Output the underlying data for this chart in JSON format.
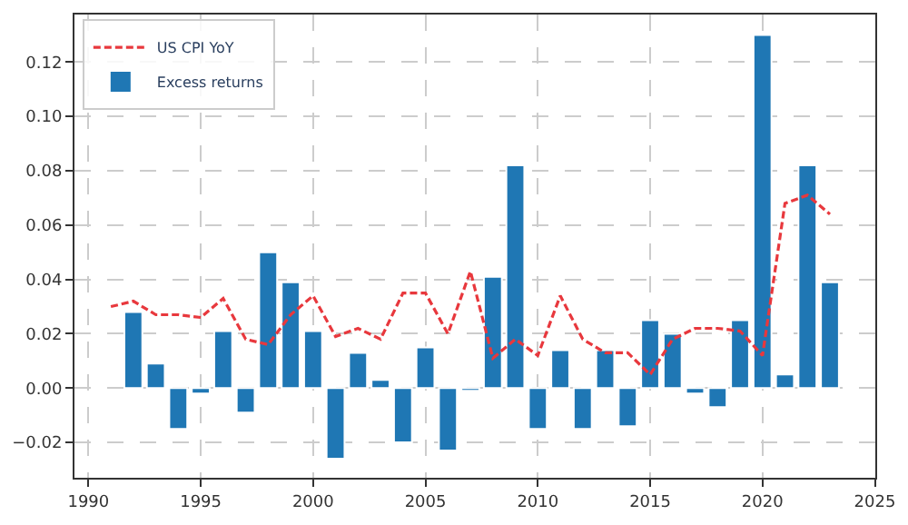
{
  "chart_data": {
    "type": "bar",
    "xlim": [
      1989.38,
      2025.02
    ],
    "xticks": [
      1990,
      1995,
      2000,
      2005,
      2010,
      2015,
      2020,
      2025
    ],
    "ylim": [
      -0.033,
      0.1375
    ],
    "yticks": [
      {
        "value": -0.02,
        "label": "−0.02"
      },
      {
        "value": 0,
        "label": "0.00"
      },
      {
        "value": 0.02,
        "label": "0.02"
      },
      {
        "value": 0.04,
        "label": "0.04"
      },
      {
        "value": 0.06,
        "label": "0.06"
      },
      {
        "value": 0.08,
        "label": "0.08"
      },
      {
        "value": 0.1,
        "label": "0.10"
      },
      {
        "value": 0.12,
        "label": "0.12"
      }
    ],
    "grid": true,
    "legend": "top left",
    "series": [
      {
        "name": "US CPI YoY",
        "type": "line",
        "line_style": "dashed",
        "color": "#e8383d",
        "x": [
          1991,
          1992,
          1993,
          1994,
          1995,
          1996,
          1997,
          1998,
          1999,
          2000,
          2001,
          2002,
          2003,
          2004,
          2005,
          2006,
          2007,
          2008,
          2009,
          2010,
          2011,
          2012,
          2013,
          2014,
          2015,
          2016,
          2017,
          2018,
          2019,
          2020,
          2021,
          2022,
          2023
        ],
        "values": [
          0.03,
          0.032,
          0.027,
          0.027,
          0.026,
          0.033,
          0.018,
          0.016,
          0.027,
          0.034,
          0.019,
          0.022,
          0.018,
          0.035,
          0.035,
          0.02,
          0.043,
          0.011,
          0.018,
          0.012,
          0.034,
          0.018,
          0.013,
          0.013,
          0.005,
          0.018,
          0.022,
          0.022,
          0.021,
          0.012,
          0.068,
          0.071,
          0.064
        ]
      },
      {
        "name": "Excess returns",
        "color": "#1f77b4",
        "x": [
          1992,
          1993,
          1994,
          1995,
          1996,
          1997,
          1998,
          1999,
          2000,
          2001,
          2002,
          2003,
          2004,
          2005,
          2006,
          2007,
          2008,
          2009,
          2010,
          2011,
          2012,
          2013,
          2014,
          2015,
          2016,
          2017,
          2018,
          2019,
          2020,
          2021,
          2022,
          2023
        ],
        "values": [
          0.028,
          0.009,
          -0.015,
          -0.002,
          0.021,
          -0.009,
          0.05,
          0.039,
          0.021,
          -0.026,
          0.013,
          0.003,
          -0.02,
          0.015,
          -0.023,
          -0.001,
          0.041,
          0.082,
          -0.015,
          0.014,
          -0.015,
          0.014,
          -0.014,
          0.025,
          0.02,
          -0.002,
          -0.007,
          0.025,
          0.13,
          0.005,
          0.082,
          0.039
        ]
      }
    ]
  }
}
